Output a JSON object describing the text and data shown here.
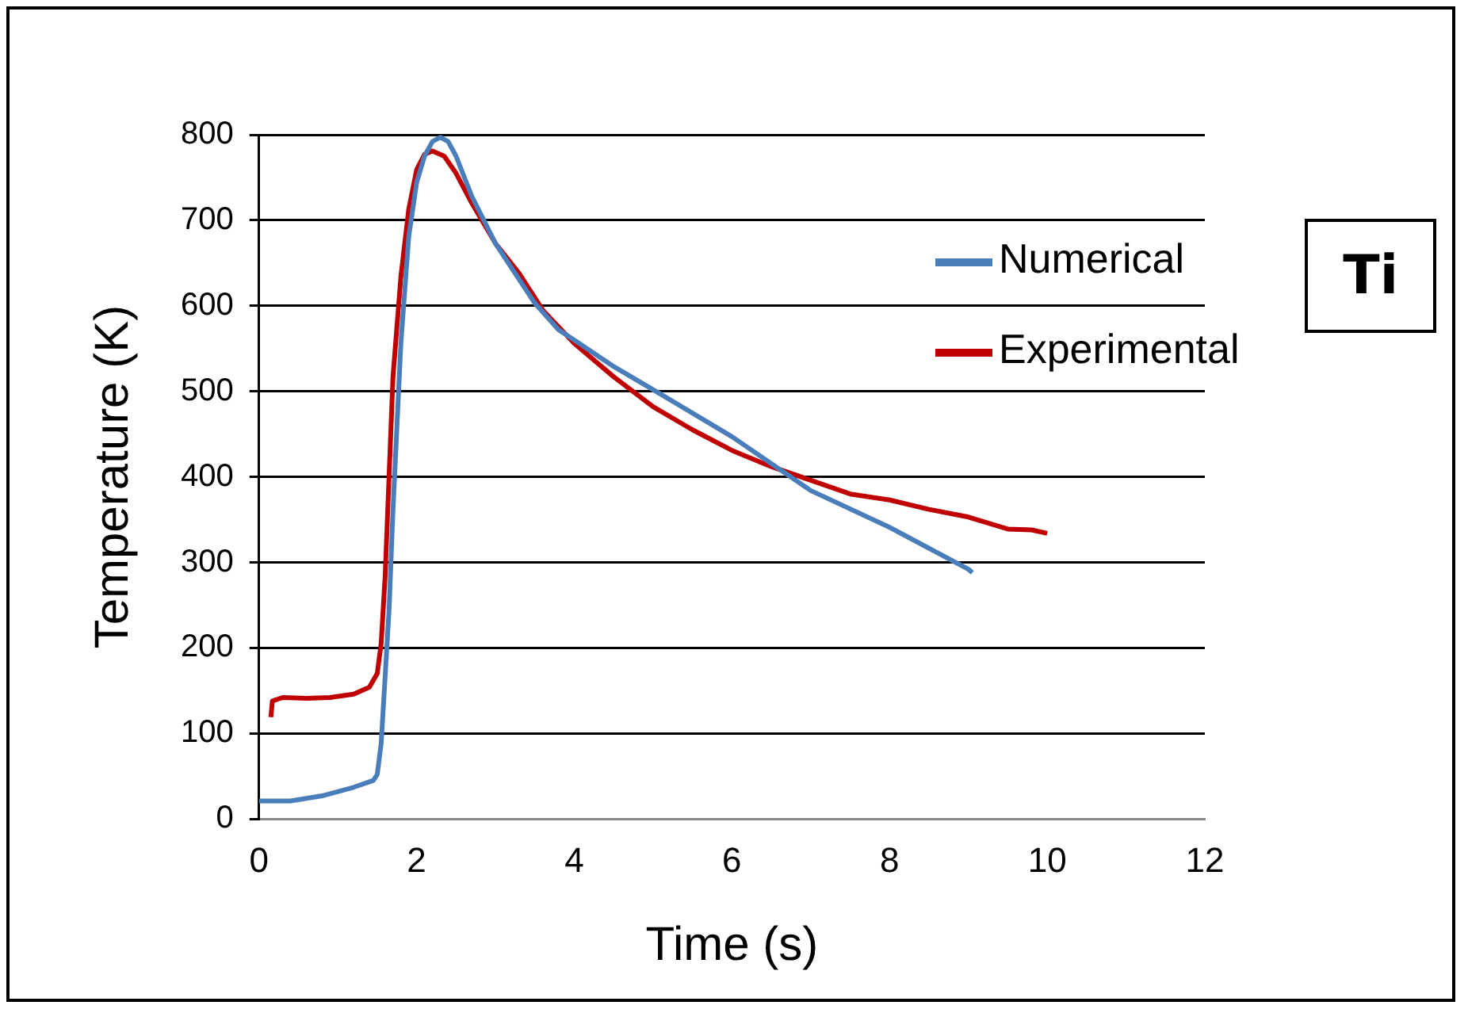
{
  "chart_data": {
    "type": "line",
    "xlabel": "Time (s)",
    "ylabel": "Temperature (K)",
    "xlim": [
      0,
      12
    ],
    "xticks": [
      0,
      2,
      4,
      6,
      8,
      10,
      12
    ],
    "ylim": [
      0,
      800
    ],
    "yticks": [
      0,
      100,
      200,
      300,
      400,
      500,
      600,
      700,
      800
    ],
    "grid": "y",
    "legend": "right",
    "marker": "none",
    "line_style": "solid",
    "annotations": [
      "Ti"
    ],
    "series": [
      {
        "name": "Numerical",
        "color": "#4a7ebb",
        "x": [
          0,
          0.4,
          0.8,
          1.2,
          1.45,
          1.5,
          1.55,
          1.6,
          1.65,
          1.7,
          1.8,
          1.9,
          2.0,
          2.1,
          2.2,
          2.3,
          2.4,
          2.5,
          2.7,
          3.0,
          3.5,
          3.8,
          4.0,
          4.5,
          5.0,
          6.0,
          7.0,
          8.0,
          9.0,
          9.05
        ],
        "values": [
          21,
          21,
          27,
          37,
          45,
          52,
          88,
          166,
          244,
          361,
          556,
          681,
          744,
          775,
          792,
          797,
          792,
          775,
          728,
          673,
          603,
          572,
          560,
          529,
          502,
          447,
          384,
          341,
          292,
          288
        ]
      },
      {
        "name": "Experimental",
        "color": "#c00000",
        "x": [
          0.15,
          0.17,
          0.3,
          0.6,
          0.9,
          1.2,
          1.4,
          1.5,
          1.55,
          1.6,
          1.65,
          1.7,
          1.8,
          1.9,
          2.0,
          2.1,
          2.2,
          2.35,
          2.5,
          2.7,
          3.0,
          3.3,
          3.6,
          4.0,
          4.5,
          5.0,
          5.5,
          6.0,
          6.5,
          7.0,
          7.5,
          8.0,
          8.5,
          9.0,
          9.5,
          9.8,
          10.0
        ],
        "values": [
          119,
          138,
          142,
          141,
          142,
          146,
          154,
          170,
          205,
          283,
          400,
          517,
          634,
          713,
          759,
          777,
          781,
          775,
          755,
          720,
          673,
          638,
          595,
          556,
          517,
          482,
          455,
          431,
          412,
          396,
          380,
          373,
          362,
          353,
          339,
          338,
          334
        ]
      }
    ]
  }
}
